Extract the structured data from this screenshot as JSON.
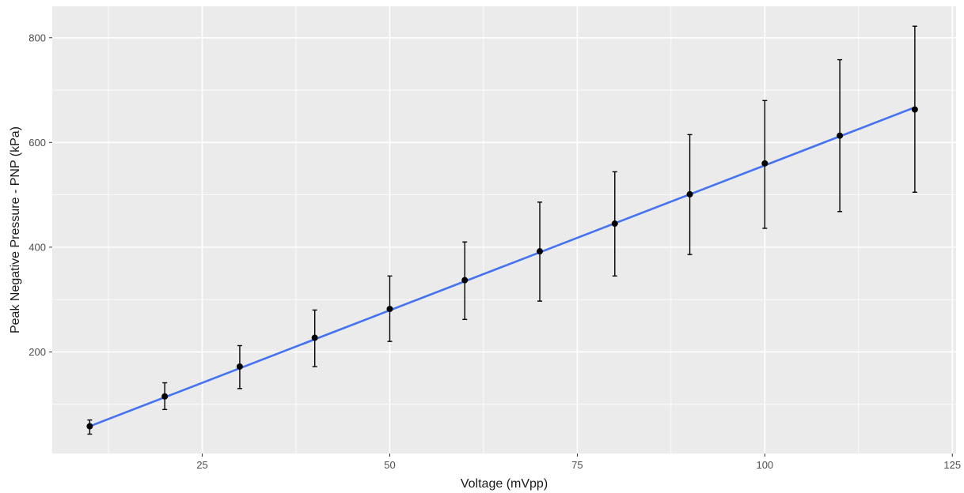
{
  "chart_data": {
    "type": "scatter",
    "title": "",
    "xlabel": "Voltage (mVpp)",
    "ylabel": "Peak Negative Pressure - PNP (kPa)",
    "xlim": [
      5,
      125.5
    ],
    "ylim": [
      6,
      860
    ],
    "x_ticks": [
      25,
      50,
      75,
      100,
      125
    ],
    "x_minor_ticks": [
      12.5,
      37.5,
      62.5,
      87.5,
      112.5
    ],
    "y_ticks": [
      200,
      400,
      600,
      800
    ],
    "y_minor_ticks": [
      100,
      300,
      500,
      700
    ],
    "grid": true,
    "legend": "none",
    "panel_background": "#ebebeb",
    "grid_color": "#ffffff",
    "point_color": "#000000",
    "fit_line_color": "#4472f0",
    "points": [
      {
        "x": 10,
        "y": 58,
        "ymin": 43,
        "ymax": 70
      },
      {
        "x": 20,
        "y": 115,
        "ymin": 90,
        "ymax": 141
      },
      {
        "x": 30,
        "y": 172,
        "ymin": 130,
        "ymax": 212
      },
      {
        "x": 40,
        "y": 227,
        "ymin": 172,
        "ymax": 280
      },
      {
        "x": 50,
        "y": 282,
        "ymin": 220,
        "ymax": 345
      },
      {
        "x": 60,
        "y": 337,
        "ymin": 262,
        "ymax": 410
      },
      {
        "x": 70,
        "y": 392,
        "ymin": 297,
        "ymax": 486
      },
      {
        "x": 80,
        "y": 445,
        "ymin": 345,
        "ymax": 544
      },
      {
        "x": 90,
        "y": 501,
        "ymin": 386,
        "ymax": 615
      },
      {
        "x": 100,
        "y": 560,
        "ymin": 436,
        "ymax": 680
      },
      {
        "x": 110,
        "y": 613,
        "ymin": 468,
        "ymax": 758
      },
      {
        "x": 120,
        "y": 663,
        "ymin": 505,
        "ymax": 822
      }
    ],
    "fit_line": {
      "x": [
        10,
        120
      ],
      "y": [
        58,
        667
      ]
    }
  }
}
